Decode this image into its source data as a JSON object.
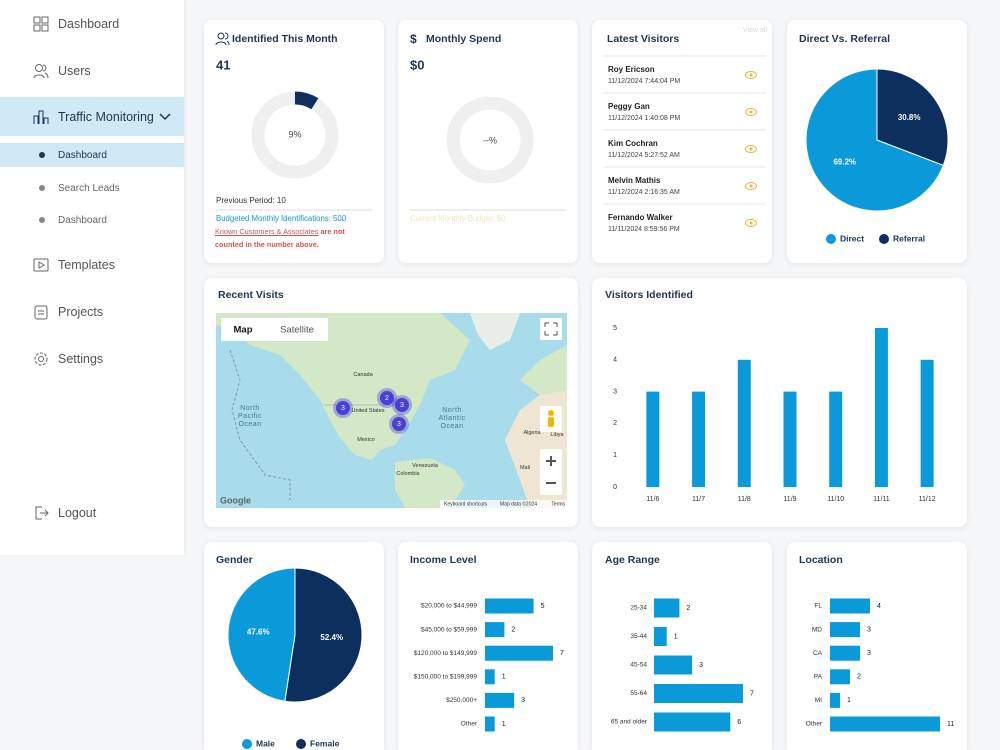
{
  "sidebar": {
    "nav": [
      "Dashboard",
      "Users",
      "Traffic Monitoring",
      "Templates",
      "Projects",
      "Settings"
    ],
    "subnav": [
      "Dashboard",
      "Search Leads",
      "Dashboard"
    ],
    "logout": "Logout"
  },
  "identified_this_month": {
    "title": "Identified This Month",
    "count": 41,
    "donut": {
      "value": 9,
      "value_label": "9%"
    },
    "previous_period": "Previous Period: 10",
    "budget": "Budgeted Monthly Identifications: 500",
    "known_link": "Known Customers & Associates",
    "known_note": "are not counted in the number above."
  },
  "monthly_spend": {
    "title": "Monthly Spend",
    "amount": "$0",
    "donut_label": "--%",
    "budget": "Current Monthly Budget: $0"
  },
  "latest_visitors": {
    "title": "Latest Visitors",
    "view_all": "View all",
    "visitors": [
      {
        "name": "Roy Ericson",
        "time": "11/12/2024 7:44:04 PM"
      },
      {
        "name": "Peggy Gan",
        "time": "11/12/2024 1:40:08 PM"
      },
      {
        "name": "Kim Cochran",
        "time": "11/12/2024 5:27:52 AM"
      },
      {
        "name": "Melvin Mathis",
        "time": "11/12/2024 2:16:35 AM"
      },
      {
        "name": "Fernando Walker",
        "time": "11/11/2024 8:59:56 PM"
      }
    ]
  },
  "direct_vs_referral": {
    "type": "pie",
    "title": "Direct Vs. Referral",
    "categories": [
      "Direct",
      "Referral"
    ],
    "values": [
      69.2,
      30.8
    ],
    "value_labels": [
      "69.2%",
      "30.8%"
    ],
    "colors": [
      "#0a9ad9",
      "#0d2f5e"
    ]
  },
  "recent_visits": {
    "title": "Recent Visits",
    "tabs": [
      "Map",
      "Satellite"
    ],
    "labels": [
      "Canada",
      "United States",
      "Mexico",
      "North Pacific Ocean",
      "North Atlantic Ocean",
      "Venezuela",
      "Colombia",
      "Algeria",
      "Libya",
      "Mali"
    ],
    "clusters": [
      3,
      2,
      3,
      3
    ],
    "logo": "Google",
    "attribution": [
      "Keyboard shortcuts",
      "Map data ©2024",
      "Terms"
    ]
  },
  "visitors_identified": {
    "type": "bar",
    "title": "Visitors Identified",
    "categories": [
      "11/6",
      "11/7",
      "11/8",
      "11/9",
      "11/10",
      "11/11",
      "11/12"
    ],
    "values": [
      3,
      3,
      4,
      3,
      3,
      5,
      4
    ],
    "color": "#0a9ad9",
    "ylim": [
      0,
      5
    ],
    "yticks": [
      0,
      1,
      2,
      3,
      4,
      5
    ]
  },
  "gender": {
    "type": "pie",
    "title": "Gender",
    "categories": [
      "Male",
      "Female"
    ],
    "values": [
      47.6,
      52.4
    ],
    "value_labels": [
      "47.6%",
      "52.4%"
    ],
    "colors": [
      "#0a9ad9",
      "#0d2f5e"
    ]
  },
  "income_level": {
    "type": "bar",
    "orientation": "horizontal",
    "title": "Income Level",
    "categories": [
      "$20,000 to $44,999",
      "$45,000 to $59,999",
      "$120,000 to $149,999",
      "$150,000 to $199,999",
      "$250,000+",
      "Other"
    ],
    "values": [
      5,
      2,
      7,
      1,
      3,
      1
    ],
    "color": "#0a9ad9"
  },
  "age_range": {
    "type": "bar",
    "orientation": "horizontal",
    "title": "Age Range",
    "categories": [
      "25-34",
      "35-44",
      "45-54",
      "55-64",
      "65 and older"
    ],
    "values": [
      2,
      1,
      3,
      7,
      6
    ],
    "color": "#0a9ad9"
  },
  "location": {
    "type": "bar",
    "orientation": "horizontal",
    "title": "Location",
    "categories": [
      "FL",
      "MD",
      "CA",
      "PA",
      "MI",
      "Other"
    ],
    "values": [
      4,
      3,
      3,
      2,
      1,
      11
    ],
    "color": "#0a9ad9"
  }
}
